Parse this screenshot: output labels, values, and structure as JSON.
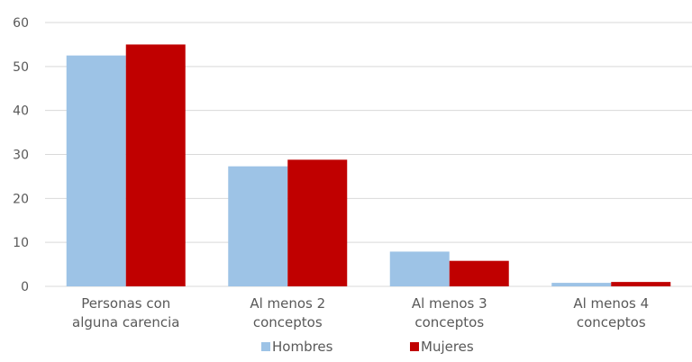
{
  "chart_data": {
    "type": "bar",
    "title": "",
    "xlabel": "",
    "ylabel": "",
    "categories": [
      [
        "Personas con",
        "alguna carencia"
      ],
      [
        "Al menos 2",
        "conceptos"
      ],
      [
        "Al menos 3",
        "conceptos"
      ],
      [
        "Al menos 4",
        "conceptos"
      ]
    ],
    "series": [
      {
        "name": "Hombres",
        "color": "#9dc3e6",
        "values": [
          52.5,
          27.3,
          7.9,
          0.8
        ]
      },
      {
        "name": "Mujeres",
        "color": "#c00000",
        "values": [
          55.0,
          28.8,
          5.8,
          1.0
        ]
      }
    ],
    "ylim": [
      0,
      60
    ],
    "yticks": [
      0,
      10,
      20,
      30,
      40,
      50,
      60
    ],
    "grid": true,
    "legend_position": "bottom"
  }
}
